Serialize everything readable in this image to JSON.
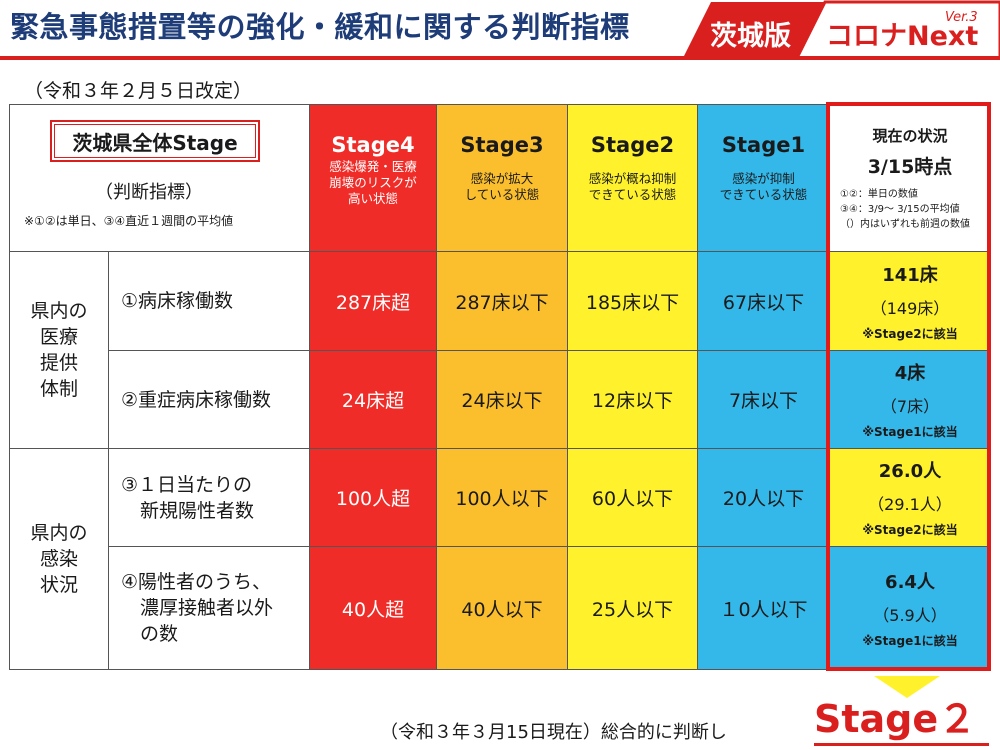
{
  "header": {
    "title": "緊急事態措置等の強化・緩和に関する判断指標",
    "brand_part1": "茨城版",
    "brand_part2": "コロナNext",
    "brand_ver": "Ver.3"
  },
  "revised": "（令和３年２月５日改定）",
  "corner": {
    "stage_label": "茨城県全体Stage",
    "judge_label": "（判断指標）",
    "note": "※①②は単日、③④直近１週間の平均値"
  },
  "stages": [
    {
      "name": "Stage4",
      "desc": "感染爆発・医療\n崩壊のリスクが\n高い状態"
    },
    {
      "name": "Stage3",
      "desc": "感染が拡大\nしている状態"
    },
    {
      "name": "Stage2",
      "desc": "感染が概ね抑制\nできている状態"
    },
    {
      "name": "Stage1",
      "desc": "感染が抑制\nできている状態"
    }
  ],
  "current_header": {
    "title": "現在の状況",
    "date": "3/15時点",
    "note": "①②：単日の数値\n③④：3/9～ 3/15の平均値\n （）内はいずれも前週の数値"
  },
  "groups": [
    {
      "label": "県内の\n医療\n提供\n体制"
    },
    {
      "label": "県内の\n感染\n状況"
    }
  ],
  "rows": [
    {
      "indicator": "①病床稼働数",
      "values": [
        "287床超",
        "287床以下",
        "185床以下",
        "67床以下"
      ],
      "current": "141床",
      "prev": "（149床）",
      "status": "※Stage2に該当"
    },
    {
      "indicator": "②重症病床稼働数",
      "values": [
        "24床超",
        "24床以下",
        "12床以下",
        "7床以下"
      ],
      "current": "4床",
      "prev": "（7床）",
      "status": "※Stage1に該当"
    },
    {
      "indicator": "③１日当たりの\n　新規陽性者数",
      "values": [
        "100人超",
        "100人以下",
        "60人以下",
        "20人以下"
      ],
      "current": "26.0人",
      "prev": "（29.1人）",
      "status": "※Stage2に該当"
    },
    {
      "indicator": "④陽性者のうち、\n　濃厚接触者以外\n　の数",
      "values": [
        "40人超",
        "40人以下",
        "25人以下",
        "１0人以下"
      ],
      "current": "6.4人",
      "prev": "（5.9人）",
      "status": "※Stage1に該当"
    }
  ],
  "footer": {
    "text": "（令和３年３月15日現在）総合的に判断し",
    "stage": "Stage２"
  },
  "colors": {
    "stage4": "#f02c28",
    "stage3": "#fbbf2e",
    "stage2": "#fff22d",
    "stage1": "#34b7e9",
    "accent": "#d9201f",
    "title": "#1d3c78"
  }
}
